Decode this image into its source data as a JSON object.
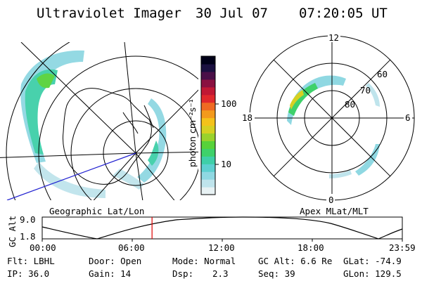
{
  "header": {
    "instrument": "Ultraviolet Imager",
    "date": "30 Jul 07",
    "time": "07:20:05 UT"
  },
  "colorbar": {
    "unit_label": "photon cm⁻²s⁻¹",
    "ticks": [
      "100",
      "10"
    ],
    "colors": [
      "#e8f2f4",
      "#bfe4ec",
      "#8fd8e2",
      "#5ed0d0",
      "#3fcfa8",
      "#3ed16a",
      "#57d23a",
      "#9ad22c",
      "#d6d022",
      "#f4c21a",
      "#f39a1c",
      "#ef6a22",
      "#e0282c",
      "#c01834",
      "#8a1040",
      "#4a1048",
      "#1a1040",
      "#000018"
    ]
  },
  "geo_map": {
    "label": "Geographic Lat/Lon"
  },
  "polar_map": {
    "label": "Apex MLat/MLT",
    "mlt_labels": [
      "12",
      "18",
      "6",
      "0"
    ],
    "lat_labels": [
      "60",
      "70",
      "80"
    ]
  },
  "altitude_plot": {
    "ylabel": "GC Alt",
    "y_ticks": [
      "9.0",
      "1.8"
    ],
    "x_ticks": [
      "00:00",
      "06:00",
      "12:00",
      "18:00",
      "23:59"
    ],
    "current_time_fraction": 0.305
  },
  "info": {
    "filter": "Flt: LBHL",
    "door": "Door: Open",
    "mode": "Mode: Normal",
    "gc_alt": "GC Alt: 6.6 Re",
    "glat": "GLat: -74.9",
    "ip": "IP: 36.0",
    "gain": "Gain: 14",
    "dsp_label": "Dsp:",
    "dsp_value": "2.3",
    "seq": "Seq: 39",
    "glon": "GLon: 129.5"
  },
  "accent_colors": {
    "marker_line": "#e00000",
    "track_line": "#2020d0"
  }
}
